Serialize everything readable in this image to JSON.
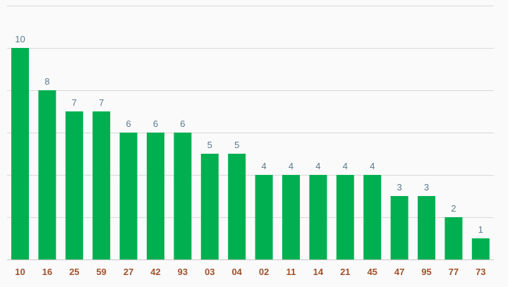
{
  "chart_data": {
    "type": "bar",
    "categories": [
      "10",
      "16",
      "25",
      "59",
      "27",
      "42",
      "93",
      "03",
      "04",
      "02",
      "11",
      "14",
      "21",
      "45",
      "47",
      "95",
      "77",
      "73"
    ],
    "values": [
      10,
      8,
      7,
      7,
      6,
      6,
      6,
      5,
      5,
      4,
      4,
      4,
      4,
      4,
      3,
      3,
      2,
      1
    ],
    "title": "",
    "xlabel": "",
    "ylabel": "",
    "ylim": [
      0,
      12
    ],
    "grid": true,
    "data_labels": true,
    "colors": {
      "bar": "#00b050",
      "value_label": "#5a7a8c",
      "category_label": "#a0522d",
      "grid": "#d9d9d9",
      "background": "#fafafa"
    }
  }
}
